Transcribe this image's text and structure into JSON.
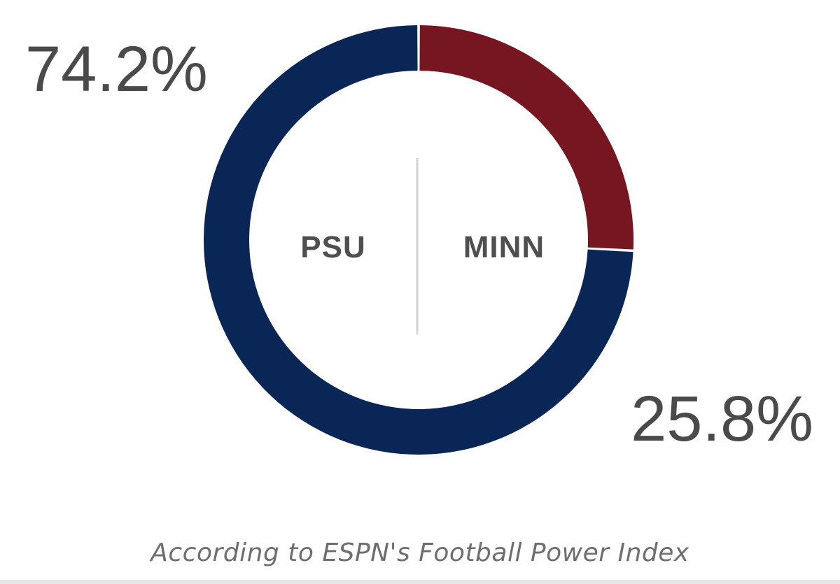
{
  "chart_data": {
    "type": "pie",
    "donut": true,
    "slices": [
      {
        "team": "PSU",
        "percent_label": "74.2%",
        "value": 74.2,
        "color": "#0a2657"
      },
      {
        "team": "MINN",
        "percent_label": "25.8%",
        "value": 25.8,
        "color": "#751620"
      }
    ],
    "center_divider_color": "#d4d4d4"
  },
  "labels": {
    "psu_percent": "74.2%",
    "minn_percent": "25.8%",
    "psu_team": "PSU",
    "minn_team": "MINN"
  },
  "footnote": "According to ESPN's Football Power Index"
}
